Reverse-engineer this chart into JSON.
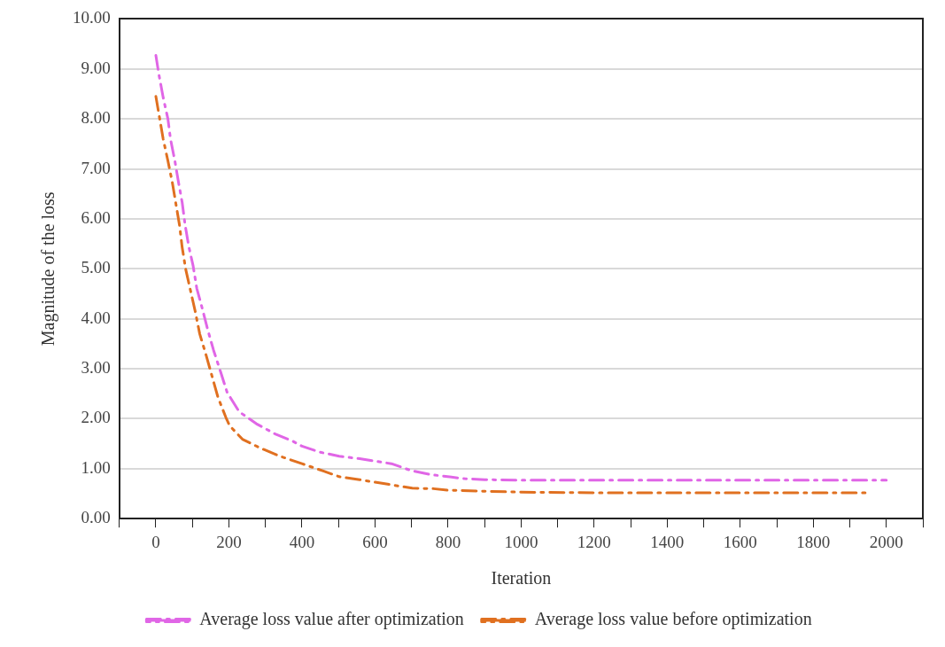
{
  "chart_data": {
    "type": "line",
    "xlabel": "Iteration",
    "ylabel": "Magnitude of the loss",
    "xlim": [
      -100,
      2100
    ],
    "xticks": [
      {
        "value": -100,
        "label": null
      },
      {
        "value": 0,
        "label": "0"
      },
      {
        "value": 100,
        "label": null
      },
      {
        "value": 200,
        "label": "200"
      },
      {
        "value": 300,
        "label": null
      },
      {
        "value": 400,
        "label": "400"
      },
      {
        "value": 500,
        "label": null
      },
      {
        "value": 600,
        "label": "600"
      },
      {
        "value": 700,
        "label": null
      },
      {
        "value": 800,
        "label": "800"
      },
      {
        "value": 900,
        "label": null
      },
      {
        "value": 1000,
        "label": "1000"
      },
      {
        "value": 1100,
        "label": null
      },
      {
        "value": 1200,
        "label": "1200"
      },
      {
        "value": 1300,
        "label": null
      },
      {
        "value": 1400,
        "label": "1400"
      },
      {
        "value": 1500,
        "label": null
      },
      {
        "value": 1600,
        "label": "1600"
      },
      {
        "value": 1700,
        "label": null
      },
      {
        "value": 1800,
        "label": "1800"
      },
      {
        "value": 1900,
        "label": null
      },
      {
        "value": 2000,
        "label": "2000"
      },
      {
        "value": 2100,
        "label": null
      }
    ],
    "ylim": [
      0,
      10
    ],
    "yticks": [
      {
        "value": 0,
        "label": "0.00"
      },
      {
        "value": 1,
        "label": "1.00"
      },
      {
        "value": 2,
        "label": "2.00"
      },
      {
        "value": 3,
        "label": "3.00"
      },
      {
        "value": 4,
        "label": "4.00"
      },
      {
        "value": 5,
        "label": "5.00"
      },
      {
        "value": 6,
        "label": "6.00"
      },
      {
        "value": 7,
        "label": "7.00"
      },
      {
        "value": 8,
        "label": "8.00"
      },
      {
        "value": 9,
        "label": "9.00"
      },
      {
        "value": 10,
        "label": "10.00"
      }
    ],
    "grid": "y",
    "legend": "bottom",
    "marker": "none",
    "line_style": "dashed",
    "series": [
      {
        "name": "Average loss value after optimization",
        "color": "#e066e6",
        "x": [
          0,
          8,
          20,
          33,
          40,
          52,
          62,
          72,
          80,
          90,
          102,
          112,
          128,
          142,
          158,
          178,
          195,
          228,
          275,
          328,
          375,
          400,
          450,
          502,
          558,
          645,
          700,
          755,
          845,
          900,
          1000,
          1200,
          1400,
          1600,
          1800,
          2000
        ],
        "values": [
          9.27,
          8.9,
          8.43,
          8.0,
          7.6,
          7.16,
          6.73,
          6.33,
          5.88,
          5.45,
          5.06,
          4.61,
          4.18,
          3.78,
          3.37,
          2.92,
          2.53,
          2.14,
          1.9,
          1.69,
          1.55,
          1.45,
          1.33,
          1.25,
          1.2,
          1.1,
          0.96,
          0.88,
          0.8,
          0.78,
          0.77,
          0.77,
          0.77,
          0.77,
          0.77,
          0.77
        ]
      },
      {
        "name": "Average loss value before optimization",
        "color": "#e07020",
        "x": [
          0,
          20,
          33,
          45,
          65,
          72,
          82,
          108,
          120,
          138,
          170,
          192,
          202,
          237,
          287,
          340,
          400,
          460,
          502,
          558,
          600,
          702,
          760,
          798,
          900,
          1000,
          1200,
          1400,
          1600,
          1800,
          1950
        ],
        "values": [
          8.45,
          7.6,
          7.16,
          6.73,
          5.86,
          5.43,
          4.98,
          4.14,
          3.7,
          3.26,
          2.43,
          2.02,
          1.86,
          1.59,
          1.41,
          1.25,
          1.1,
          0.95,
          0.84,
          0.78,
          0.73,
          0.61,
          0.6,
          0.57,
          0.55,
          0.53,
          0.52,
          0.52,
          0.52,
          0.52,
          0.52
        ]
      }
    ]
  }
}
